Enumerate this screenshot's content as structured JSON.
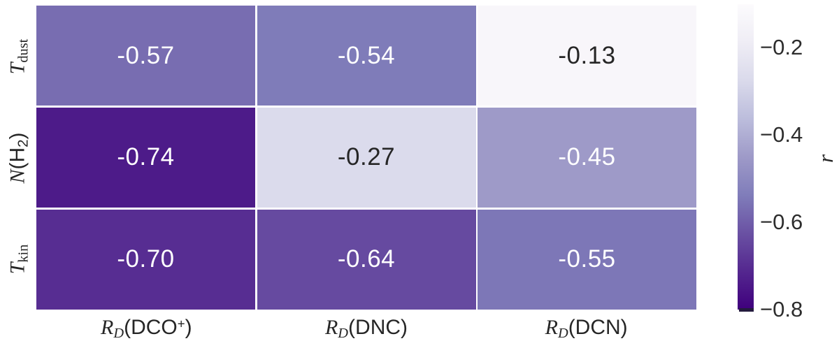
{
  "figure": {
    "background": "#ffffff",
    "annot_text_dark": "#262626",
    "annot_text_light": "#ffffff",
    "grid_line_color": "#ffffff"
  },
  "chart_data": {
    "type": "heatmap",
    "title": "",
    "xlabel": "",
    "ylabel": "",
    "rows": [
      {
        "name": "T_dust",
        "segments": [
          {
            "t": "T",
            "s": "it"
          },
          {
            "t": "dust",
            "s": "rm seg-sub"
          }
        ]
      },
      {
        "name": "N(H2)",
        "segments": [
          {
            "t": "N",
            "s": "it"
          },
          {
            "t": "(H",
            "s": "sf"
          },
          {
            "t": "2",
            "s": "sf seg-sub"
          },
          {
            "t": ")",
            "s": "sf"
          }
        ]
      },
      {
        "name": "T_kin",
        "segments": [
          {
            "t": "T",
            "s": "it"
          },
          {
            "t": "kin",
            "s": "rm seg-sub"
          }
        ]
      }
    ],
    "columns": [
      {
        "name": "R_D(DCO+)",
        "segments": [
          {
            "t": "R",
            "s": "it"
          },
          {
            "t": "D",
            "s": "it seg-sub"
          },
          {
            "t": "(DCO",
            "s": "sf"
          },
          {
            "t": "+",
            "s": "sf seg-sup"
          },
          {
            "t": ")",
            "s": "sf"
          }
        ]
      },
      {
        "name": "R_D(DNC)",
        "segments": [
          {
            "t": "R",
            "s": "it"
          },
          {
            "t": "D",
            "s": "it seg-sub"
          },
          {
            "t": "(DNC)",
            "s": "sf"
          }
        ]
      },
      {
        "name": "R_D(DCN)",
        "segments": [
          {
            "t": "R",
            "s": "it"
          },
          {
            "t": "D",
            "s": "it seg-sub"
          },
          {
            "t": "(DCN)",
            "s": "sf"
          }
        ]
      }
    ],
    "values": [
      [
        -0.57,
        -0.54,
        -0.13
      ],
      [
        -0.74,
        -0.27,
        -0.45
      ],
      [
        -0.7,
        -0.64,
        -0.55
      ]
    ],
    "cell_labels": [
      [
        "-0.57",
        "-0.54",
        "-0.13"
      ],
      [
        "-0.74",
        "-0.27",
        "-0.45"
      ],
      [
        "-0.70",
        "-0.64",
        "-0.55"
      ]
    ],
    "colorbar": {
      "label": "r",
      "vmin": -0.8,
      "vmax": -0.1,
      "tick_labels": [
        "−0.2",
        "−0.4",
        "−0.6",
        "−0.8"
      ],
      "tick_values": [
        -0.2,
        -0.4,
        -0.6,
        -0.8
      ],
      "colormap_name": "Purples",
      "colormap_stops": [
        [
          0.0,
          "#fcfbfd"
        ],
        [
          0.125,
          "#efedf5"
        ],
        [
          0.25,
          "#dadaeb"
        ],
        [
          0.375,
          "#bcbddc"
        ],
        [
          0.5,
          "#9e9ac8"
        ],
        [
          0.625,
          "#807dba"
        ],
        [
          0.75,
          "#6a51a3"
        ],
        [
          0.875,
          "#54278f"
        ],
        [
          1.0,
          "#3f007d"
        ]
      ]
    },
    "layout": {
      "legend_position": "right-colorbar",
      "grid_lines": true
    }
  }
}
